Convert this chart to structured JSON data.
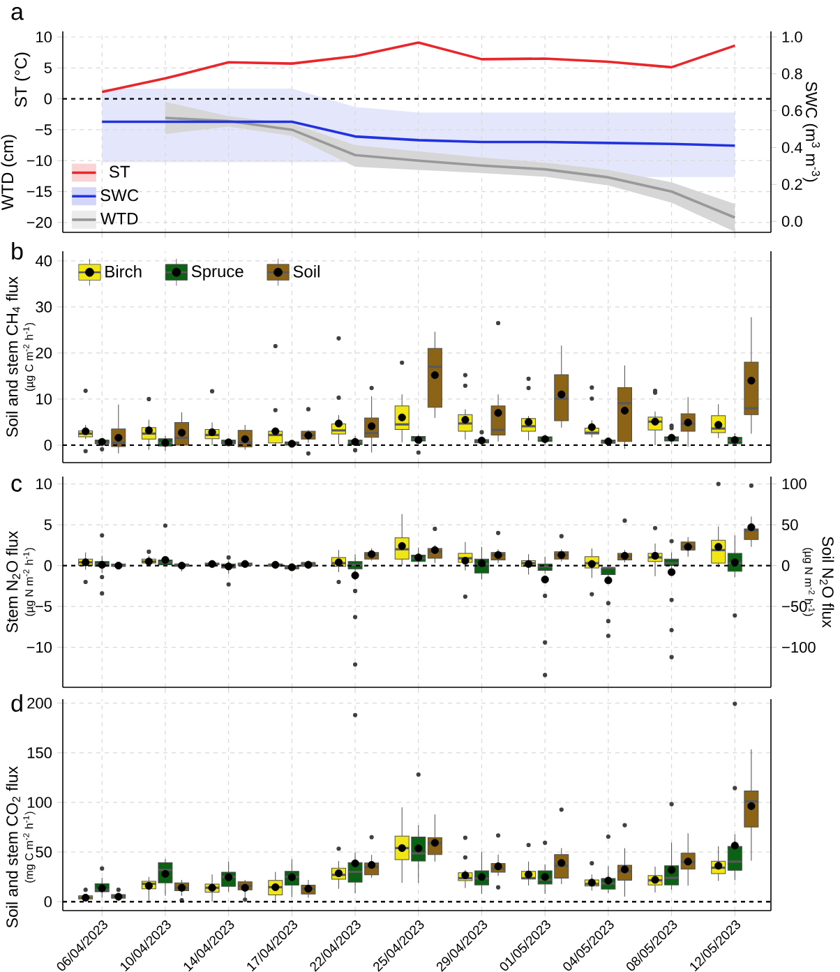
{
  "chart_data": [
    {
      "type": "line",
      "title": "a",
      "ylabel": "WTD (cm)",
      "y2label": "SWC (m$^{3}$ m$^{-3}$)",
      "annotations": [
        "ST (°C)"
      ],
      "categories": [
        null,
        null,
        null,
        null,
        null,
        null,
        null,
        null,
        null,
        null,
        null
      ],
      "tick_labels": "y",
      "grid": true,
      "legend": "bottom left",
      "ylim": [
        -21.6,
        10.9
      ],
      "yticks": [
        {
          "value": -20,
          "label": "−20"
        },
        {
          "value": -15,
          "label": "−15"
        },
        {
          "value": -10,
          "label": "−10"
        },
        {
          "value": -5,
          "label": "−5"
        },
        0,
        5,
        10
      ],
      "y2lim": [
        -0.06,
        1.03
      ],
      "y2ticks": [
        {
          "value": 0,
          "label": "0.0"
        },
        0.2,
        0.4,
        0.6,
        0.8,
        {
          "value": 1,
          "label": "1.0"
        }
      ],
      "ref_lines": [
        {
          "axis": "y",
          "value": 0,
          "color": "#000000",
          "line_style": "dashed"
        }
      ],
      "series": [
        {
          "name": "ST",
          "color": "#e8262b",
          "values": [
            1.1,
            3.3,
            5.9,
            5.7,
            6.9,
            9.1,
            6.4,
            6.5,
            6.0,
            5.1,
            8.6
          ]
        },
        {
          "name": "SWC",
          "color": "#2233dd",
          "axis": "y2",
          "values": [
            0.54,
            0.54,
            0.54,
            0.54,
            0.46,
            0.44,
            0.43,
            0.43,
            0.425,
            0.42,
            0.41
          ],
          "lower": [
            0.32,
            0.32,
            0.32,
            0.32,
            0.32,
            0.32,
            0.32,
            0.32,
            0.24,
            0.24,
            0.24
          ],
          "upper": [
            0.72,
            0.72,
            0.72,
            0.72,
            0.62,
            0.59,
            0.59,
            0.59,
            0.59,
            0.59,
            0.59
          ]
        },
        {
          "name": "WTD",
          "color": "#999999",
          "values": [
            null,
            -3.1,
            -3.6,
            -5.0,
            -9.1,
            -10.0,
            -10.8,
            -11.4,
            -12.7,
            -15.0,
            -19.2
          ],
          "lower": [
            null,
            -5.7,
            -4.5,
            -6.0,
            -11.0,
            -11.5,
            -12.0,
            -12.6,
            -14.0,
            -16.8,
            -21.5
          ],
          "upper": [
            null,
            -0.5,
            -2.8,
            -4.0,
            -7.5,
            -8.5,
            -9.5,
            -10.3,
            -11.5,
            -13.5,
            -17.0
          ]
        }
      ]
    },
    {
      "type": "box",
      "title": "b",
      "ylabel": "Soil and stem CH$_{4}$ flux",
      "annotations": [
        "(µg C m$^{-2}$ h$^{-1}$)"
      ],
      "categories": [
        null,
        null,
        null,
        null,
        null,
        null,
        null,
        null,
        null,
        null,
        null
      ],
      "tick_labels": "y",
      "grid": true,
      "legend": "top left",
      "ylim": [
        -3.8,
        42.1
      ],
      "yticks": [
        0,
        10,
        20,
        30,
        40
      ],
      "ref_lines": [
        {
          "axis": "y",
          "value": 0,
          "color": "#000000",
          "line_style": "dashed"
        }
      ],
      "series": [
        {
          "name": "Birch",
          "color": "#f0e614",
          "boxes": [
            {
              "low": 1.3,
              "q1": 1.8,
              "median": 2.5,
              "q3": 3.1,
              "high": 4.4,
              "mean": 3.0,
              "outliers": [
                11.8,
                -1.3
              ]
            },
            {
              "low": -1.0,
              "q1": 1.3,
              "median": 2.5,
              "q3": 3.8,
              "high": 5.5,
              "mean": 3.2,
              "outliers": [
                10.0
              ]
            },
            {
              "low": 0,
              "q1": 1.4,
              "median": 2.2,
              "q3": 3.4,
              "high": 4.9,
              "mean": 2.8,
              "outliers": [
                11.7
              ]
            },
            {
              "low": 0,
              "q1": 0.5,
              "median": 2.2,
              "q3": 3.0,
              "high": 3.2,
              "mean": 3.0,
              "outliers": [
                21.5,
                7.6
              ]
            },
            {
              "low": 0.2,
              "q1": 2.4,
              "median": 3.2,
              "q3": 4.6,
              "high": 6.5,
              "mean": 4.7,
              "outliers": [
                23.2,
                10.3
              ]
            },
            {
              "low": 0.6,
              "q1": 3.4,
              "median": 4.5,
              "q3": 8.5,
              "high": 11.0,
              "mean": 6.0,
              "outliers": [
                17.9
              ]
            },
            {
              "low": 1.2,
              "q1": 3.0,
              "median": 4.7,
              "q3": 6.6,
              "high": 7.8,
              "mean": 5.5,
              "outliers": [
                15.2,
                12.9
              ]
            },
            {
              "low": 1.0,
              "q1": 3.0,
              "median": 4.1,
              "q3": 5.8,
              "high": 6.3,
              "mean": 5.0,
              "outliers": [
                14.4,
                12.4
              ]
            },
            {
              "low": 1.7,
              "q1": 2.4,
              "median": 2.7,
              "q3": 3.7,
              "high": 5.4,
              "mean": 3.9,
              "outliers": [
                12.5,
                10.1
              ]
            },
            {
              "low": 0,
              "q1": 3.3,
              "median": 5.1,
              "q3": 6.1,
              "high": 7.3,
              "mean": 5.1,
              "outliers": [
                11.8,
                11.4
              ]
            },
            {
              "low": 1.5,
              "q1": 2.7,
              "median": 3.6,
              "q3": 6.4,
              "high": 8.9,
              "mean": 4.4
            }
          ]
        },
        {
          "name": "Spruce",
          "color": "#0b6114",
          "boxes": [
            {
              "low": -0.3,
              "q1": 0.3,
              "median": 0.6,
              "q3": 1.1,
              "high": 1.2,
              "mean": 0.7,
              "outliers": [
                -0.9
              ]
            },
            {
              "low": -1.2,
              "q1": -0.2,
              "median": 0.5,
              "q3": 1.4,
              "high": 2.0,
              "mean": 0.5
            },
            {
              "low": 0,
              "q1": 0.3,
              "median": 0.7,
              "q3": 1.1,
              "high": 1.2,
              "mean": 0.6
            },
            {
              "low": -0.2,
              "q1": 0,
              "median": 0.3,
              "q3": 0.7,
              "high": 0.8,
              "mean": 0.3
            },
            {
              "low": -0.2,
              "q1": 0.1,
              "median": 0.7,
              "q3": 1.1,
              "high": 2.0,
              "mean": 0.7,
              "outliers": [
                -1.1
              ]
            },
            {
              "low": 0.5,
              "q1": 0.9,
              "median": 1.3,
              "q3": 1.9,
              "high": 2.2,
              "mean": 1.1,
              "outliers": [
                -1.6
              ]
            },
            {
              "low": 0.2,
              "q1": 0.5,
              "median": 0.9,
              "q3": 1.2,
              "high": 1.5,
              "mean": 1.0,
              "outliers": [
                2.8
              ]
            },
            {
              "low": 0,
              "q1": 0.8,
              "median": 1.3,
              "q3": 1.8,
              "high": 2.2,
              "mean": 1.3
            },
            {
              "low": 0,
              "q1": 0.4,
              "median": 0.7,
              "q3": 1.1,
              "high": 1.2,
              "mean": 0.8
            },
            {
              "low": 0.2,
              "q1": 0.9,
              "median": 1.3,
              "q3": 1.8,
              "high": 2.2,
              "mean": 1.6,
              "outliers": [
                3.7,
                4.2
              ]
            },
            {
              "low": 0,
              "q1": 0.3,
              "median": 1.0,
              "q3": 1.7,
              "high": 2.6,
              "mean": 1.1
            }
          ]
        },
        {
          "name": "Soil",
          "color": "#8c6417",
          "boxes": [
            {
              "low": -1.8,
              "q1": -0.3,
              "median": 0.5,
              "q3": 3.5,
              "high": 8.8,
              "mean": 1.6
            },
            {
              "low": 0,
              "q1": 0,
              "median": 1.6,
              "q3": 4.9,
              "high": 7.1,
              "mean": 2.7
            },
            {
              "low": -1.0,
              "q1": -0.4,
              "median": 0.6,
              "q3": 3.2,
              "high": 4.4,
              "mean": 1.3
            },
            {
              "low": 0.5,
              "q1": 1.3,
              "median": 2.2,
              "q3": 3.0,
              "high": 3.3,
              "mean": 2.1,
              "outliers": [
                7.8,
                -1.8
              ]
            },
            {
              "low": -1.6,
              "q1": 1.7,
              "median": 2.6,
              "q3": 5.9,
              "high": 10.6,
              "mean": 4.1,
              "outliers": [
                12.4
              ]
            },
            {
              "low": 5.9,
              "q1": 8.2,
              "median": 17.0,
              "q3": 21.0,
              "high": 24.6,
              "mean": 15.2
            },
            {
              "low": 0.8,
              "q1": 2.2,
              "median": 3.3,
              "q3": 8.5,
              "high": 11.0,
              "mean": 7.0,
              "outliers": [
                26.5
              ]
            },
            {
              "low": 3.8,
              "q1": 5.3,
              "median": 10.1,
              "q3": 15.3,
              "high": 21.6,
              "mean": 11.0
            },
            {
              "low": -0.8,
              "q1": 0.8,
              "median": 9.1,
              "q3": 12.5,
              "high": 17.3,
              "mean": 7.5
            },
            {
              "low": -0.3,
              "q1": 3.0,
              "median": 4.6,
              "q3": 6.8,
              "high": 10.4,
              "mean": 4.9
            },
            {
              "low": 2.5,
              "q1": 6.6,
              "median": 8.0,
              "q3": 18.0,
              "high": 27.8,
              "mean": 14.0
            }
          ]
        }
      ]
    },
    {
      "type": "box",
      "title": "c",
      "ylabel": "Stem N$_{2}$O flux",
      "y2label": "Soil N$_{2}$O flux",
      "annotations": [
        "(µg N m$^{-2}$ h$^{-1}$)",
        "(µg N m$^{-2}$ h$^{-1}$)"
      ],
      "categories": [
        null,
        null,
        null,
        null,
        null,
        null,
        null,
        null,
        null,
        null,
        null
      ],
      "tick_labels": "y",
      "grid": true,
      "ylim": [
        -14.9,
        10.9
      ],
      "yticks": [
        {
          "value": -10,
          "label": "−10"
        },
        {
          "value": -5,
          "label": "−5"
        },
        0,
        5,
        10
      ],
      "y2lim": [
        -149,
        109
      ],
      "y2ticks": [
        {
          "value": -100,
          "label": "−100"
        },
        {
          "value": -50,
          "label": "−50"
        },
        0,
        50,
        100
      ],
      "ref_lines": [
        {
          "axis": "y",
          "value": 0,
          "color": "#000000",
          "line_style": "dashed"
        }
      ],
      "series": [
        {
          "color": "#f0e614",
          "boxes": [
            {
              "low": -0.5,
              "q1": 0,
              "median": 0.4,
              "q3": 0.8,
              "high": 1.6,
              "mean": 0.4,
              "outliers": [
                -2.0
              ]
            },
            {
              "low": 0.1,
              "q1": 0.3,
              "median": 0.5,
              "q3": 0.8,
              "high": 1.2,
              "mean": 0.5,
              "outliers": [
                1.7
              ]
            },
            {
              "low": 0,
              "q1": 0.1,
              "median": 0.2,
              "q3": 0.3,
              "high": 0.4,
              "mean": 0.2
            },
            {
              "low": -0.3,
              "q1": -0.1,
              "median": 0.1,
              "q3": 0.2,
              "high": 0.4,
              "mean": 0.1
            },
            {
              "low": -0.8,
              "q1": -0.1,
              "median": 0.3,
              "q3": 1.0,
              "high": 1.9,
              "mean": 0.4,
              "outliers": [
                -2.0
              ]
            },
            {
              "low": 0,
              "q1": 0.8,
              "median": 2.0,
              "q3": 3.4,
              "high": 6.3,
              "mean": 2.4
            },
            {
              "low": -0.6,
              "q1": 0.4,
              "median": 0.9,
              "q3": 1.5,
              "high": 2.9,
              "mean": 0.6,
              "outliers": [
                -3.8
              ]
            },
            {
              "low": -1.1,
              "q1": -0.1,
              "median": 0.3,
              "q3": 0.6,
              "high": 1.4,
              "mean": 0.2
            },
            {
              "low": -1.5,
              "q1": -0.3,
              "median": 0.3,
              "q3": 1.1,
              "high": 2.1,
              "mean": 0.2,
              "outliers": [
                -3.5
              ]
            },
            {
              "low": -1.3,
              "q1": 0.5,
              "median": 1.0,
              "q3": 1.5,
              "high": 2.7,
              "mean": 1.2,
              "outliers": [
                4.6
              ]
            },
            {
              "low": -0.2,
              "q1": 0.3,
              "median": 1.9,
              "q3": 3.1,
              "high": 4.8,
              "mean": 2.3,
              "outliers": [
                10.0
              ]
            }
          ]
        },
        {
          "color": "#0b6114",
          "boxes": [
            {
              "low": -0.9,
              "q1": -0.1,
              "median": 0.2,
              "q3": 0.5,
              "high": 1.2,
              "mean": 0.1,
              "outliers": [
                3.7,
                -1.4,
                -3.4
              ]
            },
            {
              "low": 0,
              "q1": 0.1,
              "median": 0.4,
              "q3": 0.7,
              "high": 1.0,
              "mean": 0.7,
              "outliers": [
                4.9
              ]
            },
            {
              "low": -1.0,
              "q1": -0.3,
              "median": -0.1,
              "q3": 0.2,
              "high": 0.6,
              "mean": -0.1,
              "outliers": [
                1.0,
                -2.3
              ]
            },
            {
              "low": -0.5,
              "q1": -0.4,
              "median": -0.2,
              "q3": 0,
              "high": 0.1,
              "mean": -0.2
            },
            {
              "low": -1.8,
              "q1": -0.4,
              "median": 0.1,
              "q3": 0.5,
              "high": 1.4,
              "mean": -1.2,
              "outliers": [
                -3.1,
                -6.3,
                -12.1
              ]
            },
            {
              "low": 0,
              "q1": 0.5,
              "median": 0.9,
              "q3": 1.3,
              "high": 2.2,
              "mean": 1.0
            },
            {
              "low": -1.7,
              "q1": -0.9,
              "median": 0.2,
              "q3": 0.8,
              "high": 2.3,
              "mean": 0.3
            },
            {
              "low": -1.0,
              "q1": -0.6,
              "median": -0.1,
              "q3": 0.2,
              "high": 1.1,
              "mean": -1.7,
              "outliers": [
                -3.7,
                -9.4,
                -13.4
              ]
            },
            {
              "low": -1.3,
              "q1": -1.1,
              "median": -0.3,
              "q3": -0.3,
              "high": 0.1,
              "mean": -1.8,
              "outliers": [
                -4.6,
                -6.8,
                -8.6
              ]
            },
            {
              "low": -0.3,
              "q1": 0,
              "median": 0.3,
              "q3": 0.8,
              "high": 1.6,
              "mean": -0.8,
              "outliers": [
                3.0,
                -4.2,
                -7.9,
                -11.2
              ]
            },
            {
              "low": -1.4,
              "q1": -0.7,
              "median": 0.3,
              "q3": 1.5,
              "high": 3.7,
              "mean": 0.4,
              "outliers": [
                -6.1
              ]
            }
          ]
        },
        {
          "color": "#8c6417",
          "axis": "y2",
          "boxes": [
            {
              "low": -3,
              "q1": -1,
              "median": 0,
              "q3": 2,
              "high": 3,
              "mean": 0
            },
            {
              "low": -7,
              "q1": -1,
              "median": 1,
              "q3": 2,
              "high": 4,
              "mean": 0
            },
            {
              "low": -1,
              "q1": 0,
              "median": 2,
              "q3": 3,
              "high": 4,
              "mean": 2
            },
            {
              "low": -3,
              "q1": -1,
              "median": 2,
              "q3": 4,
              "high": 6,
              "mean": 1
            },
            {
              "low": 6,
              "q1": 8,
              "median": 13,
              "q3": 16,
              "high": 21,
              "mean": 14
            },
            {
              "low": 3,
              "q1": 9,
              "median": 17,
              "q3": 21,
              "high": 25,
              "mean": 19,
              "outliers": [
                45
              ]
            },
            {
              "low": 3,
              "q1": 7,
              "median": 13,
              "q3": 16,
              "high": 20,
              "mean": 13,
              "outliers": [
                40
              ]
            },
            {
              "low": 5,
              "q1": 8,
              "median": 13,
              "q3": 17,
              "high": 20,
              "mean": 13,
              "outliers": [
                36
              ]
            },
            {
              "low": 4,
              "q1": 7,
              "median": 11,
              "q3": 15,
              "high": 19,
              "mean": 12,
              "outliers": [
                55
              ]
            },
            {
              "low": 11,
              "q1": 19,
              "median": 23,
              "q3": 29,
              "high": 35,
              "mean": 23
            },
            {
              "low": 23,
              "q1": 32,
              "median": 43,
              "q3": 45,
              "high": 60,
              "mean": 47,
              "outliers": [
                98
              ]
            }
          ]
        }
      ]
    },
    {
      "type": "box",
      "title": "d",
      "ylabel": "Soil and stem CO$_{2}$ flux",
      "annotations": [
        "(mg C m$^{-2}$ h$^{-1}$)"
      ],
      "categories": [
        "06/04/2023",
        "10/04/2023",
        "14/04/2023",
        "17/04/2023",
        "22/04/2023",
        "25/04/2023",
        "29/04/2023",
        "01/05/2023",
        "04/05/2023",
        "08/05/2023",
        "12/05/2023"
      ],
      "grid": true,
      "ylim": [
        -9,
        204
      ],
      "yticks": [
        0,
        50,
        100,
        150,
        200
      ],
      "ref_lines": [
        {
          "axis": "y",
          "value": 0,
          "color": "#000000",
          "line_style": "dashed"
        }
      ],
      "series": [
        {
          "color": "#f0e614",
          "boxes": [
            {
              "low": 0.5,
              "q1": 2.6,
              "median": 4.3,
              "q3": 6.0,
              "high": 6.5,
              "mean": 4,
              "outliers": [
                12
              ]
            },
            {
              "low": 1,
              "q1": 13,
              "median": 18,
              "q3": 20.6,
              "high": 25,
              "mean": 16
            },
            {
              "low": 0,
              "q1": 9.4,
              "median": 14,
              "q3": 17.7,
              "high": 27.4,
              "mean": 14
            },
            {
              "low": 1.4,
              "q1": 6.9,
              "median": 14.6,
              "q3": 21.4,
              "high": 30,
              "mean": 14.6
            },
            {
              "low": 13,
              "q1": 22.6,
              "median": 27,
              "q3": 33.7,
              "high": 41,
              "mean": 28.6,
              "outliers": [
                53.4
              ]
            },
            {
              "low": 19,
              "q1": 42.3,
              "median": 54,
              "q3": 66,
              "high": 95,
              "mean": 54
            },
            {
              "low": 13.6,
              "q1": 21.2,
              "median": 23.7,
              "q3": 29.1,
              "high": 31.9,
              "mean": 26.6,
              "outliers": [
                64.4,
                44.6
              ]
            },
            {
              "low": 16.4,
              "q1": 22.9,
              "median": 23.7,
              "q3": 30.5,
              "high": 40.4,
              "mean": 27.4,
              "outliers": [
                57.1
              ]
            },
            {
              "low": 11.3,
              "q1": 15.8,
              "median": 17.8,
              "q3": 22.0,
              "high": 27.4,
              "mean": 19.2,
              "outliers": [
                38.7
              ]
            },
            {
              "low": 9.3,
              "q1": 16.9,
              "median": 21.5,
              "q3": 26.3,
              "high": 35.3,
              "mean": 22.0
            },
            {
              "low": 20.9,
              "q1": 28.2,
              "median": 34.2,
              "q3": 40.7,
              "high": 55.9,
              "mean": 36.2
            }
          ]
        },
        {
          "color": "#0b6114",
          "boxes": [
            {
              "low": 4,
              "q1": 10,
              "median": 12,
              "q3": 18,
              "high": 24,
              "mean": 13.5,
              "outliers": [
                33.4
              ]
            },
            {
              "low": 6,
              "q1": 19,
              "median": 32,
              "q3": 39.4,
              "high": 43,
              "mean": 28
            },
            {
              "low": 10,
              "q1": 15.4,
              "median": 25,
              "q3": 29.7,
              "high": 40.6,
              "mean": 24.6
            },
            {
              "low": 4.6,
              "q1": 16.6,
              "median": 25,
              "q3": 30.6,
              "high": 42.6,
              "mean": 24.6
            },
            {
              "low": 8.6,
              "q1": 19.7,
              "median": 30,
              "q3": 39.4,
              "high": 49.7,
              "mean": 38.6,
              "outliers": [
                188
              ]
            },
            {
              "low": 19,
              "q1": 40.9,
              "median": 48.6,
              "q3": 65.1,
              "high": 77,
              "mean": 53.7,
              "outliers": [
                128
              ]
            },
            {
              "low": 7.9,
              "q1": 16.9,
              "median": 23.4,
              "q3": 31.1,
              "high": 50,
              "mean": 24.9
            },
            {
              "low": 7.9,
              "q1": 17.8,
              "median": 22.0,
              "q3": 31.1,
              "high": 37.6,
              "mean": 24.9,
              "outliers": [
                59.3
              ]
            },
            {
              "low": 8.8,
              "q1": 12.7,
              "median": 18.4,
              "q3": 23.4,
              "high": 35.6,
              "mean": 21.2,
              "outliers": [
                65.5
              ]
            },
            {
              "low": 12.1,
              "q1": 16.9,
              "median": 24.0,
              "q3": 36.2,
              "high": 59.6,
              "mean": 31.9,
              "outliers": [
                98.3
              ]
            },
            {
              "low": 21.5,
              "q1": 31.6,
              "median": 40.4,
              "q3": 55.6,
              "high": 67.8,
              "mean": 56.5,
              "outliers": [
                114.4,
                199.4
              ]
            }
          ]
        },
        {
          "color": "#8c6417",
          "boxes": [
            {
              "low": 1,
              "q1": 3.4,
              "median": 5.7,
              "q3": 7.1,
              "high": 8,
              "mean": 5,
              "outliers": [
                12
              ]
            },
            {
              "low": 6,
              "q1": 11,
              "median": 14,
              "q3": 19,
              "high": 22,
              "mean": 14,
              "outliers": [
                1.4
              ]
            },
            {
              "low": 4,
              "q1": 12,
              "median": 16,
              "q3": 20,
              "high": 22,
              "mean": 14,
              "outliers": [
                2
              ]
            },
            {
              "low": 4,
              "q1": 7.7,
              "median": 13,
              "q3": 16.6,
              "high": 22,
              "mean": 13
            },
            {
              "low": 24,
              "q1": 27,
              "median": 35,
              "q3": 39,
              "high": 47,
              "mean": 37,
              "outliers": [
                65
              ]
            },
            {
              "low": 40.4,
              "q1": 47.5,
              "median": 58.8,
              "q3": 64.4,
              "high": 87.9,
              "mean": 59.3
            },
            {
              "low": 26.0,
              "q1": 29.7,
              "median": 33.3,
              "q3": 38.4,
              "high": 47.5,
              "mean": 35.6,
              "outliers": [
                66.7,
                14.4
              ]
            },
            {
              "low": 17.8,
              "q1": 23.7,
              "median": 36.2,
              "q3": 47.5,
              "high": 54.0,
              "mean": 39.0,
              "outliers": [
                92.7
              ]
            },
            {
              "low": 5.1,
              "q1": 21.5,
              "median": 30.5,
              "q3": 36.7,
              "high": 54.0,
              "mean": 32.5,
              "outliers": [
                77.1
              ]
            },
            {
              "low": 16.1,
              "q1": 32.8,
              "median": 39.8,
              "q3": 48.9,
              "high": 68.9,
              "mean": 40.4
            },
            {
              "low": 41.2,
              "q1": 75.1,
              "median": 101.1,
              "q3": 111.6,
              "high": 153.4,
              "mean": 96.3
            }
          ]
        }
      ]
    }
  ]
}
